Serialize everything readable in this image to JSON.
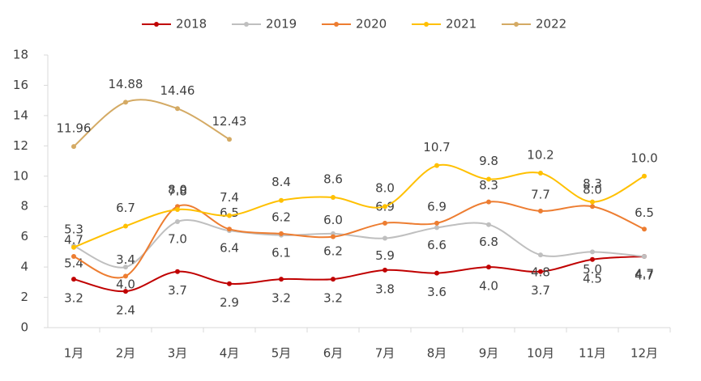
{
  "chart_data": {
    "type": "line",
    "categories": [
      "1月",
      "2月",
      "3月",
      "4月",
      "5月",
      "6月",
      "7月",
      "8月",
      "9月",
      "10月",
      "11月",
      "12月"
    ],
    "series": [
      {
        "name": "2018",
        "color": "#c00000",
        "values": [
          3.2,
          2.4,
          3.7,
          2.9,
          3.2,
          3.2,
          3.8,
          3.6,
          4.0,
          3.7,
          4.5,
          4.7
        ],
        "value_labels": [
          "3.2",
          "2.4",
          "3.7",
          "2.9",
          "3.2",
          "3.2",
          "3.8",
          "3.6",
          "4.0",
          "3.7",
          "4.5",
          "4.7"
        ]
      },
      {
        "name": "2019",
        "color": "#bfbfbf",
        "values": [
          5.4,
          4.0,
          7.0,
          6.4,
          6.1,
          6.2,
          5.9,
          6.6,
          6.8,
          4.8,
          5.0,
          4.7
        ],
        "value_labels": [
          "5.4",
          "4.0",
          "7.0",
          "6.4",
          "6.1",
          "6.2",
          "5.9",
          "6.6",
          "6.8",
          "4.8",
          "5.0",
          "4.7"
        ]
      },
      {
        "name": "2020",
        "color": "#ed7d31",
        "values": [
          4.7,
          3.4,
          8.0,
          6.5,
          6.2,
          6.0,
          6.9,
          6.9,
          8.3,
          7.7,
          8.0,
          6.5
        ],
        "value_labels": [
          "4.7",
          "3.4",
          "8.0",
          "6.5",
          "6.2",
          "6.0",
          "6.9",
          "6.9",
          "8.3",
          "7.7",
          "8.0",
          "6.5"
        ]
      },
      {
        "name": "2021",
        "color": "#ffc000",
        "values": [
          5.3,
          6.7,
          7.8,
          7.4,
          8.4,
          8.6,
          8.0,
          10.7,
          9.8,
          10.2,
          8.3,
          10.0
        ],
        "value_labels": [
          "5.3",
          "6.7",
          "7.8",
          "7.4",
          "8.4",
          "8.6",
          "8.0",
          "10.7",
          "9.8",
          "10.2",
          "8.3",
          "10.0"
        ]
      },
      {
        "name": "2022",
        "color": "#d4aa64",
        "values": [
          11.96,
          14.88,
          14.46,
          12.43,
          null,
          null,
          null,
          null,
          null,
          null,
          null,
          null
        ]
      }
    ],
    "ylim": [
      0,
      18
    ],
    "yticks": [
      0,
      2,
      4,
      6,
      8,
      10,
      12,
      14,
      16,
      18
    ],
    "legend": "top"
  }
}
